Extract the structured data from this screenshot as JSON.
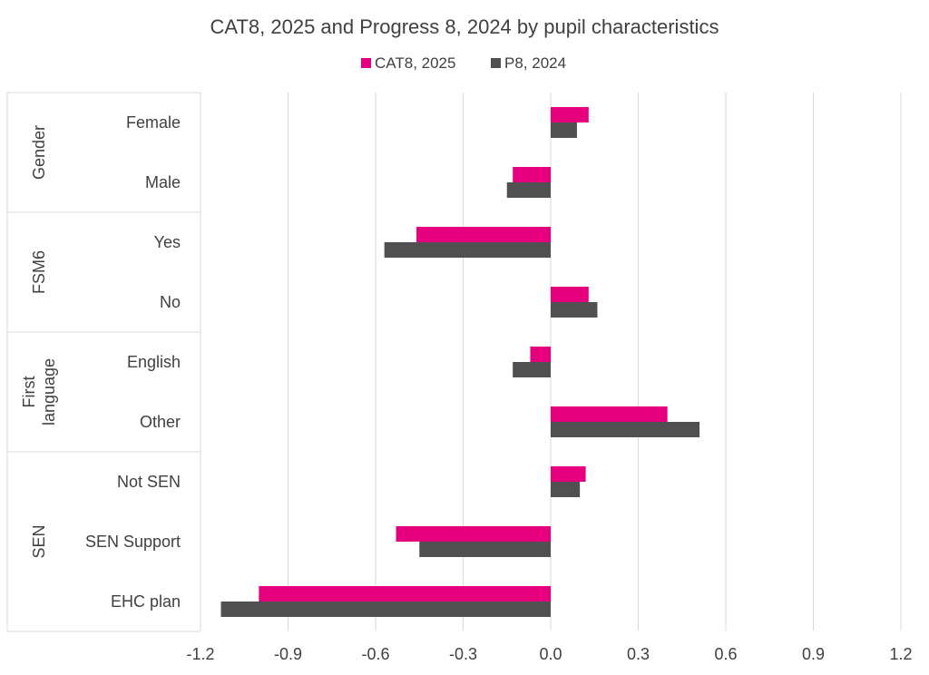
{
  "chart_data": {
    "type": "bar",
    "orientation": "horizontal",
    "title": "CAT8, 2025 and Progress 8, 2024 by pupil characteristics",
    "legend_position": "top",
    "grid": true,
    "xlim": [
      -1.2,
      1.2
    ],
    "x_ticks": [
      "-1.2",
      "-0.9",
      "-0.6",
      "-0.3",
      "0.0",
      "0.3",
      "0.6",
      "0.9",
      "1.2"
    ],
    "x_tick_values": [
      -1.2,
      -0.9,
      -0.6,
      -0.3,
      0.0,
      0.3,
      0.6,
      0.9,
      1.2
    ],
    "groups": [
      {
        "label": [
          "Gender"
        ],
        "categories": [
          "Female",
          "Male"
        ]
      },
      {
        "label": [
          "FSM6"
        ],
        "categories": [
          "Yes",
          "No"
        ]
      },
      {
        "label": [
          "First",
          "language"
        ],
        "categories": [
          "English",
          "Other"
        ]
      },
      {
        "label": [
          "SEN"
        ],
        "categories": [
          "Not SEN",
          "SEN Support",
          "EHC plan"
        ]
      }
    ],
    "categories": [
      "Female",
      "Male",
      "Yes",
      "No",
      "English",
      "Other",
      "Not SEN",
      "SEN Support",
      "EHC plan"
    ],
    "series": [
      {
        "name": "CAT8, 2025",
        "color": "#e6007e",
        "values": [
          0.13,
          -0.13,
          -0.46,
          0.13,
          -0.07,
          0.4,
          0.12,
          -0.53,
          -1.0
        ]
      },
      {
        "name": "P8, 2024",
        "color": "#505050",
        "values": [
          0.09,
          -0.15,
          -0.57,
          0.16,
          -0.13,
          0.51,
          0.1,
          -0.45,
          -1.13
        ]
      }
    ]
  }
}
